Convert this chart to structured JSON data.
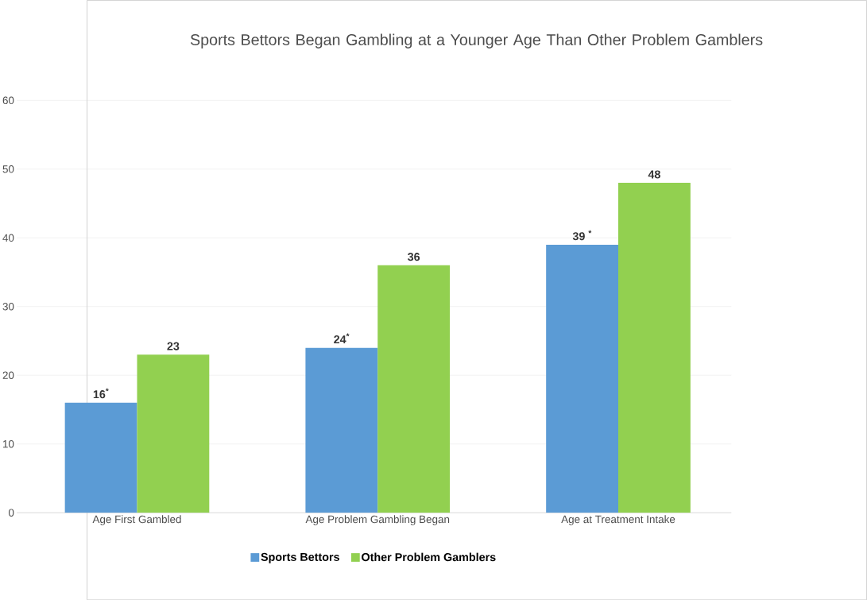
{
  "chart_data": {
    "type": "bar",
    "title": "Sports Bettors Began Gambling at a Younger Age Than Other Problem Gamblers",
    "categories": [
      "Age First Gambled",
      "Age Problem Gambling Began",
      "Age at Treatment Intake"
    ],
    "series": [
      {
        "name": "Sports Bettors",
        "color": "#5b9bd5",
        "values": [
          16,
          24,
          39
        ],
        "value_labels": [
          "16$^{*}$",
          "24$^{*}$",
          "39 $^{*}$"
        ]
      },
      {
        "name": "Other Problem Gamblers",
        "color": "#92d050",
        "values": [
          23,
          36,
          48
        ],
        "value_labels": [
          "23",
          "36",
          "48"
        ]
      }
    ],
    "ylim": [
      0,
      60
    ],
    "yticks": [
      0,
      10,
      20,
      30,
      40,
      50,
      60
    ],
    "grid": "y",
    "legend": "bottom"
  }
}
